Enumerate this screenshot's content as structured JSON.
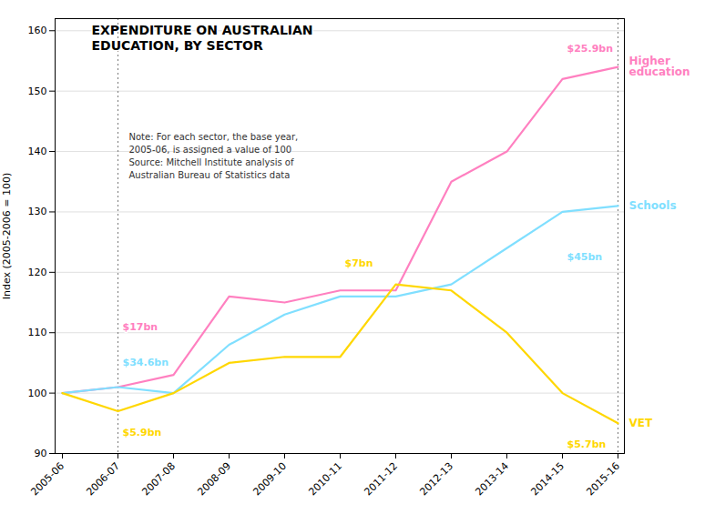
{
  "chart_data": {
    "type": "line",
    "title": "EXPENDITURE ON AUSTRALIAN\nEDUCATION, BY SECTOR",
    "ylabel": "Index (2005-2006 = 100)",
    "note": "Note: For each sector, the base year,\n2005-06, is assigned a value of 100\nSource: Mitchell Institute analysis of\nAustralian Bureau of Statistics data",
    "categories": [
      "2005-06",
      "2006-07",
      "2007-08",
      "2008-09",
      "2009-10",
      "2010-11",
      "2011-12",
      "2012-13",
      "2013-14",
      "2014-15",
      "2015-16"
    ],
    "series": [
      {
        "name": "Higher\neducation",
        "color": "#ff80c0",
        "values": [
          100,
          101,
          103,
          116,
          115,
          117,
          117,
          135,
          140,
          152,
          154
        ]
      },
      {
        "name": "Schools",
        "color": "#80dfff",
        "values": [
          100,
          101,
          100,
          108,
          113,
          116,
          116,
          118,
          124,
          130,
          131
        ]
      },
      {
        "name": "VET",
        "color": "#ffd700",
        "values": [
          100,
          97,
          100,
          105,
          106,
          106,
          118,
          117,
          110,
          100,
          95
        ]
      }
    ],
    "ylim": [
      90,
      162
    ],
    "yticks": [
      90,
      100,
      110,
      120,
      130,
      140,
      150,
      160
    ],
    "grid": true,
    "vlines": [
      "2006-07",
      "2015-16"
    ],
    "annotations": [
      {
        "text": "$17bn",
        "x": "2006-07",
        "y": 111,
        "color": "#ff80c0"
      },
      {
        "text": "$34.6bn",
        "x": "2006-07",
        "y": 105,
        "color": "#80dfff"
      },
      {
        "text": "$5.9bn",
        "x": "2006-07",
        "y": 93.5,
        "color": "#ffd700"
      },
      {
        "text": "$25.9bn",
        "x": "2014-15",
        "y": 157,
        "color": "#ff80c0"
      },
      {
        "text": "$45bn",
        "x": "2014-15",
        "y": 122.5,
        "color": "#80dfff"
      },
      {
        "text": "$5.7bn",
        "x": "2014-15",
        "y": 91.5,
        "color": "#ffd700"
      },
      {
        "text": "$7bn",
        "x": "2010-11",
        "y": 121.5,
        "color": "#ffd700"
      }
    ]
  }
}
